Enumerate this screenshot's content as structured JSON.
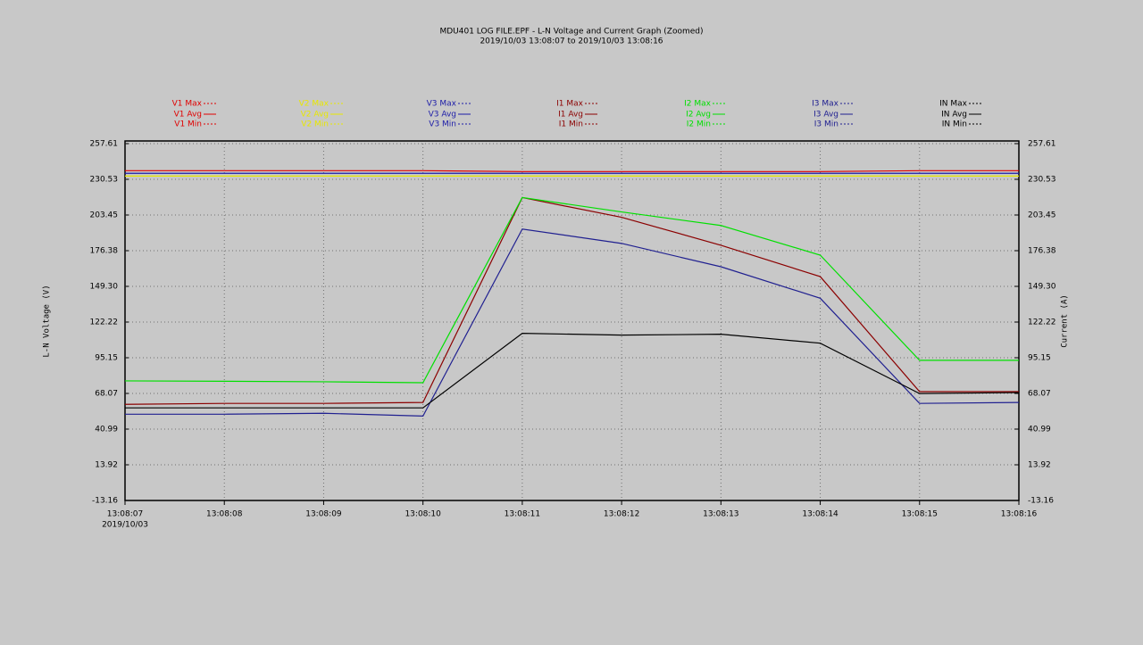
{
  "chart_data": {
    "type": "line",
    "title": "MDU401 LOG FILE.EPF - L-N Voltage and Current Graph (Zoomed)",
    "subtitle": "2019/10/03 13:08:07 to 2019/10/03 13:08:16",
    "y_label": "L-N Voltage (V)",
    "y2_label": "Current (A)",
    "categories": [
      "13:08:07",
      "13:08:08",
      "13:08:09",
      "13:08:10",
      "13:08:11",
      "13:08:12",
      "13:08:13",
      "13:08:14",
      "13:08:15",
      "13:08:16"
    ],
    "start_date": "2019/10/03",
    "ylim": [
      -13.16,
      257.61
    ],
    "yticks": [
      -13.16,
      13.92,
      40.99,
      68.07,
      95.15,
      122.22,
      {
        "value": 149.3,
        "label": "149.30"
      },
      176.38,
      203.45,
      230.53,
      257.61
    ],
    "y2lim": [
      -13.16,
      257.61
    ],
    "y2ticks": [
      -13.16,
      13.92,
      40.99,
      68.07,
      95.15,
      122.22,
      {
        "value": 149.3,
        "label": "149.30"
      },
      176.38,
      203.45,
      230.53,
      257.61
    ],
    "grid": true,
    "series": [
      {
        "name": "V1 Avg",
        "max_name": "V1 Max",
        "min_name": "V1 Min",
        "color": "#e00000",
        "axis": "y",
        "values": [
          237.1,
          237.1,
          237.1,
          237.1,
          236.4,
          236.4,
          236.4,
          236.4,
          237.1,
          237.1
        ]
      },
      {
        "name": "V2 Avg",
        "max_name": "V2 Max",
        "min_name": "V2 Min",
        "color": "#e8e800",
        "axis": "y",
        "values": [
          233.0,
          233.0,
          233.0,
          233.0,
          233.0,
          233.0,
          233.0,
          233.0,
          233.0,
          233.0
        ]
      },
      {
        "name": "V3 Avg",
        "max_name": "V3 Max",
        "min_name": "V3 Min",
        "color": "#1c1ca8",
        "axis": "y",
        "values": [
          235.1,
          235.1,
          235.1,
          235.1,
          235.1,
          235.1,
          235.1,
          235.1,
          235.1,
          235.1
        ]
      },
      {
        "name": "I1 Avg",
        "max_name": "I1 Max",
        "min_name": "I1 Min",
        "color": "#8b0000",
        "axis": "y2",
        "values": [
          59.8,
          60.5,
          60.5,
          61.2,
          216.7,
          201.7,
          180.5,
          156.7,
          69.4,
          69.4
        ]
      },
      {
        "name": "I2 Avg",
        "max_name": "I2 Max",
        "min_name": "I2 Min",
        "color": "#00e000",
        "axis": "y2",
        "values": [
          77.6,
          77.3,
          76.9,
          76.2,
          216.7,
          205.8,
          195.5,
          173.0,
          93.2,
          93.2
        ]
      },
      {
        "name": "I3 Avg",
        "max_name": "I3 Max",
        "min_name": "I3 Min",
        "color": "#202090",
        "axis": "y2",
        "values": [
          52.3,
          52.3,
          53.0,
          50.9,
          192.8,
          181.9,
          164.2,
          140.3,
          60.5,
          61.2
        ]
      },
      {
        "name": "IN Avg",
        "max_name": "IN Max",
        "min_name": "IN Min",
        "color": "#000000",
        "axis": "y2",
        "values": [
          57.1,
          57.1,
          57.1,
          57.1,
          113.7,
          112.3,
          113.0,
          106.2,
          68.0,
          68.7
        ]
      }
    ]
  }
}
